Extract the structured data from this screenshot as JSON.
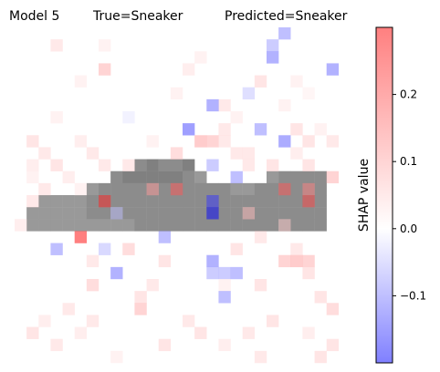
{
  "chart_data": {
    "type": "heatmap",
    "title_parts": {
      "model": "Model 5",
      "true_label": "True=Sneaker",
      "predicted_label": "Predicted=Sneaker"
    },
    "grid_size": [
      28,
      28
    ],
    "value_range": [
      -0.2,
      0.3
    ],
    "colormap": "bwr",
    "colorbar": {
      "label": "SHAP value",
      "ticks": [
        0.2,
        0.1,
        0.0,
        -0.1
      ],
      "tick_labels": [
        "0.2",
        "0.1",
        "0.0",
        "−0.1"
      ]
    },
    "grayscale_image": {
      "description_rows": [
        14,
        19
      ],
      "cells": [
        [
          11,
          10,
          0.55
        ],
        [
          11,
          11,
          0.5
        ],
        [
          11,
          12,
          0.55
        ],
        [
          11,
          13,
          0.55
        ],
        [
          11,
          14,
          0.5
        ],
        [
          12,
          8,
          0.55
        ],
        [
          12,
          9,
          0.5
        ],
        [
          12,
          10,
          0.5
        ],
        [
          12,
          11,
          0.5
        ],
        [
          12,
          12,
          0.5
        ],
        [
          12,
          13,
          0.5
        ],
        [
          12,
          14,
          0.55
        ],
        [
          12,
          15,
          0.6
        ],
        [
          12,
          21,
          0.6
        ],
        [
          12,
          22,
          0.55
        ],
        [
          12,
          23,
          0.55
        ],
        [
          12,
          24,
          0.55
        ],
        [
          12,
          25,
          0.55
        ],
        [
          13,
          6,
          0.6
        ],
        [
          13,
          7,
          0.55
        ],
        [
          13,
          8,
          0.55
        ],
        [
          13,
          9,
          0.55
        ],
        [
          13,
          10,
          0.55
        ],
        [
          13,
          11,
          0.55
        ],
        [
          13,
          12,
          0.55
        ],
        [
          13,
          13,
          0.55
        ],
        [
          13,
          14,
          0.55
        ],
        [
          13,
          15,
          0.55
        ],
        [
          13,
          16,
          0.55
        ],
        [
          13,
          17,
          0.55
        ],
        [
          13,
          18,
          0.6
        ],
        [
          13,
          19,
          0.6
        ],
        [
          13,
          20,
          0.55
        ],
        [
          13,
          21,
          0.55
        ],
        [
          13,
          22,
          0.55
        ],
        [
          13,
          23,
          0.55
        ],
        [
          13,
          24,
          0.55
        ],
        [
          13,
          25,
          0.55
        ],
        [
          14,
          2,
          0.6
        ],
        [
          14,
          3,
          0.6
        ],
        [
          14,
          4,
          0.6
        ],
        [
          14,
          5,
          0.6
        ],
        [
          14,
          6,
          0.55
        ],
        [
          14,
          7,
          0.55
        ],
        [
          14,
          8,
          0.55
        ],
        [
          14,
          9,
          0.55
        ],
        [
          14,
          10,
          0.55
        ],
        [
          14,
          11,
          0.55
        ],
        [
          14,
          12,
          0.55
        ],
        [
          14,
          13,
          0.55
        ],
        [
          14,
          14,
          0.55
        ],
        [
          14,
          15,
          0.55
        ],
        [
          14,
          16,
          0.55
        ],
        [
          14,
          17,
          0.55
        ],
        [
          14,
          18,
          0.55
        ],
        [
          14,
          19,
          0.55
        ],
        [
          14,
          20,
          0.55
        ],
        [
          14,
          21,
          0.55
        ],
        [
          14,
          22,
          0.55
        ],
        [
          14,
          23,
          0.55
        ],
        [
          14,
          24,
          0.55
        ],
        [
          14,
          25,
          0.55
        ],
        [
          15,
          1,
          0.6
        ],
        [
          15,
          2,
          0.6
        ],
        [
          15,
          3,
          0.6
        ],
        [
          15,
          4,
          0.6
        ],
        [
          15,
          5,
          0.6
        ],
        [
          15,
          6,
          0.55
        ],
        [
          15,
          7,
          0.55
        ],
        [
          15,
          8,
          0.55
        ],
        [
          15,
          9,
          0.55
        ],
        [
          15,
          10,
          0.55
        ],
        [
          15,
          11,
          0.55
        ],
        [
          15,
          12,
          0.55
        ],
        [
          15,
          13,
          0.55
        ],
        [
          15,
          14,
          0.55
        ],
        [
          15,
          15,
          0.55
        ],
        [
          15,
          16,
          0.55
        ],
        [
          15,
          17,
          0.55
        ],
        [
          15,
          18,
          0.55
        ],
        [
          15,
          19,
          0.55
        ],
        [
          15,
          20,
          0.55
        ],
        [
          15,
          21,
          0.55
        ],
        [
          15,
          22,
          0.55
        ],
        [
          15,
          23,
          0.55
        ],
        [
          15,
          24,
          0.55
        ],
        [
          15,
          25,
          0.55
        ],
        [
          16,
          1,
          0.6
        ],
        [
          16,
          2,
          0.6
        ],
        [
          16,
          3,
          0.6
        ],
        [
          16,
          4,
          0.6
        ],
        [
          16,
          5,
          0.6
        ],
        [
          16,
          6,
          0.6
        ],
        [
          16,
          7,
          0.6
        ],
        [
          16,
          8,
          0.6
        ],
        [
          16,
          9,
          0.6
        ],
        [
          16,
          10,
          0.55
        ],
        [
          16,
          11,
          0.55
        ],
        [
          16,
          12,
          0.55
        ],
        [
          16,
          13,
          0.55
        ],
        [
          16,
          14,
          0.55
        ],
        [
          16,
          15,
          0.55
        ],
        [
          16,
          16,
          0.55
        ],
        [
          16,
          17,
          0.55
        ],
        [
          16,
          18,
          0.55
        ],
        [
          16,
          19,
          0.55
        ],
        [
          16,
          20,
          0.55
        ],
        [
          16,
          21,
          0.55
        ],
        [
          16,
          22,
          0.55
        ],
        [
          16,
          23,
          0.55
        ],
        [
          16,
          24,
          0.55
        ],
        [
          16,
          25,
          0.55
        ]
      ]
    },
    "shap_cells": [
      [
        0,
        22,
        -0.1
      ],
      [
        1,
        3,
        0.05
      ],
      [
        1,
        7,
        0.03
      ],
      [
        1,
        21,
        -0.08
      ],
      [
        2,
        21,
        -0.12
      ],
      [
        2,
        15,
        0.03
      ],
      [
        3,
        7,
        0.1
      ],
      [
        3,
        14,
        0.04
      ],
      [
        3,
        26,
        -0.12
      ],
      [
        4,
        5,
        0.03
      ],
      [
        4,
        20,
        0.06
      ],
      [
        4,
        23,
        0.03
      ],
      [
        5,
        13,
        0.03
      ],
      [
        5,
        19,
        -0.05
      ],
      [
        5,
        24,
        0.02
      ],
      [
        6,
        17,
        0.05
      ],
      [
        6,
        22,
        0.03
      ],
      [
        6,
        16,
        -0.12
      ],
      [
        7,
        3,
        0.03
      ],
      [
        7,
        9,
        -0.02
      ],
      [
        7,
        18,
        0.03
      ],
      [
        8,
        14,
        -0.15
      ],
      [
        8,
        17,
        0.05
      ],
      [
        8,
        20,
        -0.1
      ],
      [
        8,
        23,
        0.06
      ],
      [
        8,
        25,
        0.03
      ],
      [
        9,
        1,
        0.06
      ],
      [
        9,
        5,
        0.04
      ],
      [
        9,
        11,
        0.03
      ],
      [
        9,
        15,
        0.12
      ],
      [
        9,
        16,
        0.1
      ],
      [
        9,
        17,
        0.05
      ],
      [
        9,
        22,
        -0.13
      ],
      [
        9,
        24,
        0.06
      ],
      [
        9,
        26,
        0.05
      ],
      [
        10,
        2,
        0.05
      ],
      [
        10,
        6,
        0.05
      ],
      [
        10,
        13,
        0.08
      ],
      [
        10,
        18,
        0.05
      ],
      [
        10,
        19,
        0.05
      ],
      [
        10,
        23,
        0.04
      ],
      [
        11,
        1,
        0.04
      ],
      [
        11,
        3,
        0.06
      ],
      [
        11,
        7,
        0.05
      ],
      [
        11,
        9,
        0.05
      ],
      [
        11,
        16,
        -0.08
      ],
      [
        11,
        19,
        0.05
      ],
      [
        11,
        21,
        0.06
      ],
      [
        11,
        24,
        0.06
      ],
      [
        12,
        1,
        0.03
      ],
      [
        12,
        4,
        0.04
      ],
      [
        12,
        18,
        -0.1
      ],
      [
        12,
        26,
        0.1
      ],
      [
        13,
        2,
        0.05
      ],
      [
        13,
        5,
        0.03
      ],
      [
        13,
        11,
        0.12
      ],
      [
        13,
        13,
        0.2
      ],
      [
        13,
        22,
        0.2
      ],
      [
        13,
        24,
        0.15
      ],
      [
        14,
        1,
        0.05
      ],
      [
        14,
        7,
        0.26
      ],
      [
        14,
        16,
        -0.16
      ],
      [
        14,
        24,
        0.22
      ],
      [
        15,
        8,
        -0.05
      ],
      [
        15,
        16,
        -0.2
      ],
      [
        15,
        19,
        0.08
      ],
      [
        16,
        0,
        0.04
      ],
      [
        16,
        22,
        0.06
      ],
      [
        17,
        5,
        0.3
      ],
      [
        17,
        12,
        -0.1
      ],
      [
        17,
        20,
        0.05
      ],
      [
        18,
        3,
        -0.1
      ],
      [
        18,
        7,
        -0.06
      ],
      [
        18,
        9,
        0.08
      ],
      [
        18,
        18,
        0.06
      ],
      [
        18,
        23,
        0.05
      ],
      [
        19,
        6,
        0.05
      ],
      [
        19,
        12,
        0.06
      ],
      [
        19,
        16,
        -0.12
      ],
      [
        19,
        22,
        0.1
      ],
      [
        19,
        23,
        0.12
      ],
      [
        19,
        24,
        0.1
      ],
      [
        20,
        8,
        -0.12
      ],
      [
        20,
        16,
        -0.08
      ],
      [
        20,
        17,
        -0.08
      ],
      [
        20,
        18,
        -0.1
      ],
      [
        20,
        24,
        0.06
      ],
      [
        21,
        6,
        0.08
      ],
      [
        21,
        11,
        0.05
      ],
      [
        21,
        17,
        0.03
      ],
      [
        21,
        20,
        0.06
      ],
      [
        22,
        10,
        0.06
      ],
      [
        22,
        17,
        -0.1
      ],
      [
        22,
        25,
        0.06
      ],
      [
        23,
        4,
        0.05
      ],
      [
        23,
        10,
        0.1
      ],
      [
        23,
        26,
        0.08
      ],
      [
        24,
        2,
        0.04
      ],
      [
        24,
        6,
        0.05
      ],
      [
        24,
        14,
        0.05
      ],
      [
        24,
        21,
        0.06
      ],
      [
        25,
        1,
        0.06
      ],
      [
        25,
        5,
        0.04
      ],
      [
        25,
        15,
        0.06
      ],
      [
        25,
        19,
        0.05
      ],
      [
        25,
        24,
        0.04
      ],
      [
        26,
        3,
        0.05
      ],
      [
        26,
        12,
        0.06
      ],
      [
        26,
        17,
        0.04
      ],
      [
        26,
        26,
        0.06
      ],
      [
        27,
        8,
        0.03
      ],
      [
        27,
        20,
        0.05
      ],
      [
        27,
        25,
        0.06
      ]
    ]
  }
}
